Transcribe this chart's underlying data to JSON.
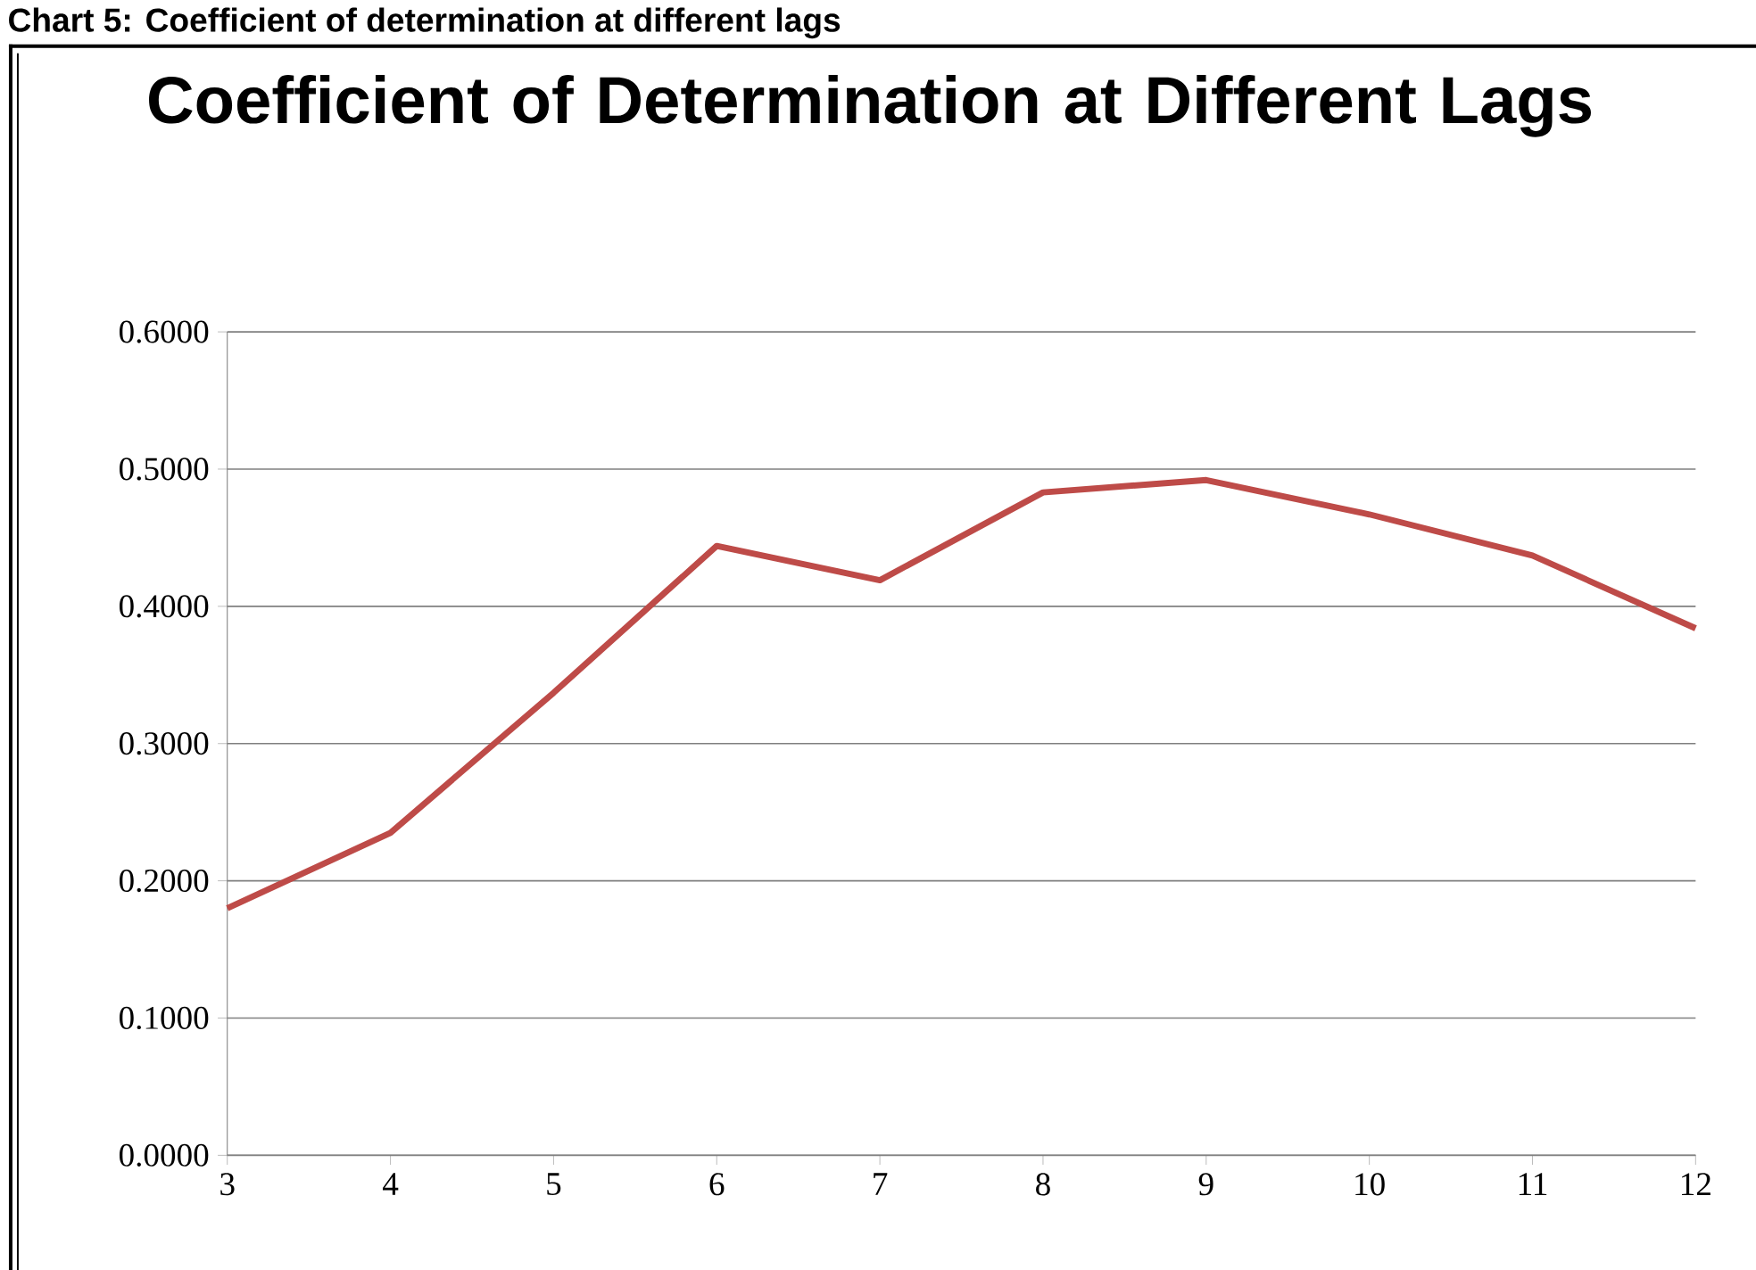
{
  "chart_data": {
    "type": "line",
    "title": "Coefficient of Determination at Different Lags",
    "annotations": [
      "Chart 5: Coefficient of determination at different lags"
    ],
    "categories": [
      "3",
      "4",
      "5",
      "6",
      "7",
      "8",
      "9",
      "10",
      "11",
      "12"
    ],
    "series": [
      {
        "color": "#be4b48",
        "values": [
          0.18,
          0.235,
          0.337,
          0.444,
          0.419,
          0.483,
          0.492,
          0.467,
          0.437,
          0.384
        ]
      }
    ],
    "ylim": [
      0,
      0.6
    ],
    "yticks": [
      {
        "value": 0,
        "label": "0.0000"
      },
      {
        "value": 0.1,
        "label": "0.1000"
      },
      {
        "value": 0.2,
        "label": "0.2000"
      },
      {
        "value": 0.3,
        "label": "0.3000"
      },
      {
        "value": 0.4,
        "label": "0.4000"
      },
      {
        "value": 0.5,
        "label": "0.5000"
      },
      {
        "value": 0.6,
        "label": "0.6000"
      }
    ],
    "grid": "y",
    "marker": "none",
    "line_style": "solid"
  }
}
